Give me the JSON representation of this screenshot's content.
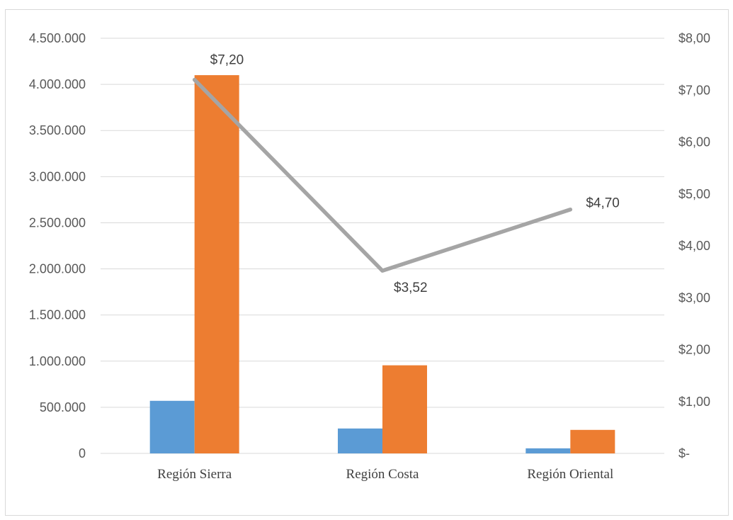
{
  "chart_data": {
    "type": "bar",
    "categories": [
      "Región Sierra",
      "Región Costa",
      "Región Oriental"
    ],
    "series": [
      {
        "values": [
          570000,
          270000,
          55000
        ],
        "color": "#5b9bd5",
        "kind": "bar",
        "axis": "left"
      },
      {
        "values": [
          4100000,
          955000,
          255000
        ],
        "color": "#ed7d31",
        "kind": "bar",
        "axis": "left"
      },
      {
        "values": [
          7.2,
          3.52,
          4.7
        ],
        "color": "#a5a5a5",
        "kind": "line",
        "axis": "right",
        "data_labels": [
          "$7,20",
          "$3,52",
          "$4,70"
        ]
      }
    ],
    "left_axis": {
      "ylim": [
        0,
        4500000
      ],
      "ticks": [
        0,
        500000,
        1000000,
        1500000,
        2000000,
        2500000,
        3000000,
        3500000,
        4000000,
        4500000
      ],
      "tick_labels": [
        "0",
        "500.000",
        "1.000.000",
        "1.500.000",
        "2.000.000",
        "2.500.000",
        "3.000.000",
        "3.500.000",
        "4.000.000",
        "4.500.000"
      ]
    },
    "right_axis": {
      "ylim": [
        0,
        8
      ],
      "ticks": [
        0,
        1,
        2,
        3,
        4,
        5,
        6,
        7,
        8
      ],
      "tick_labels": [
        "$-",
        "$1,00",
        "$2,00",
        "$3,00",
        "$4,00",
        "$5,00",
        "$6,00",
        "$7,00",
        "$8,00"
      ]
    },
    "grid": true,
    "legend": "none",
    "gridline_color": "#d9d9d9"
  }
}
